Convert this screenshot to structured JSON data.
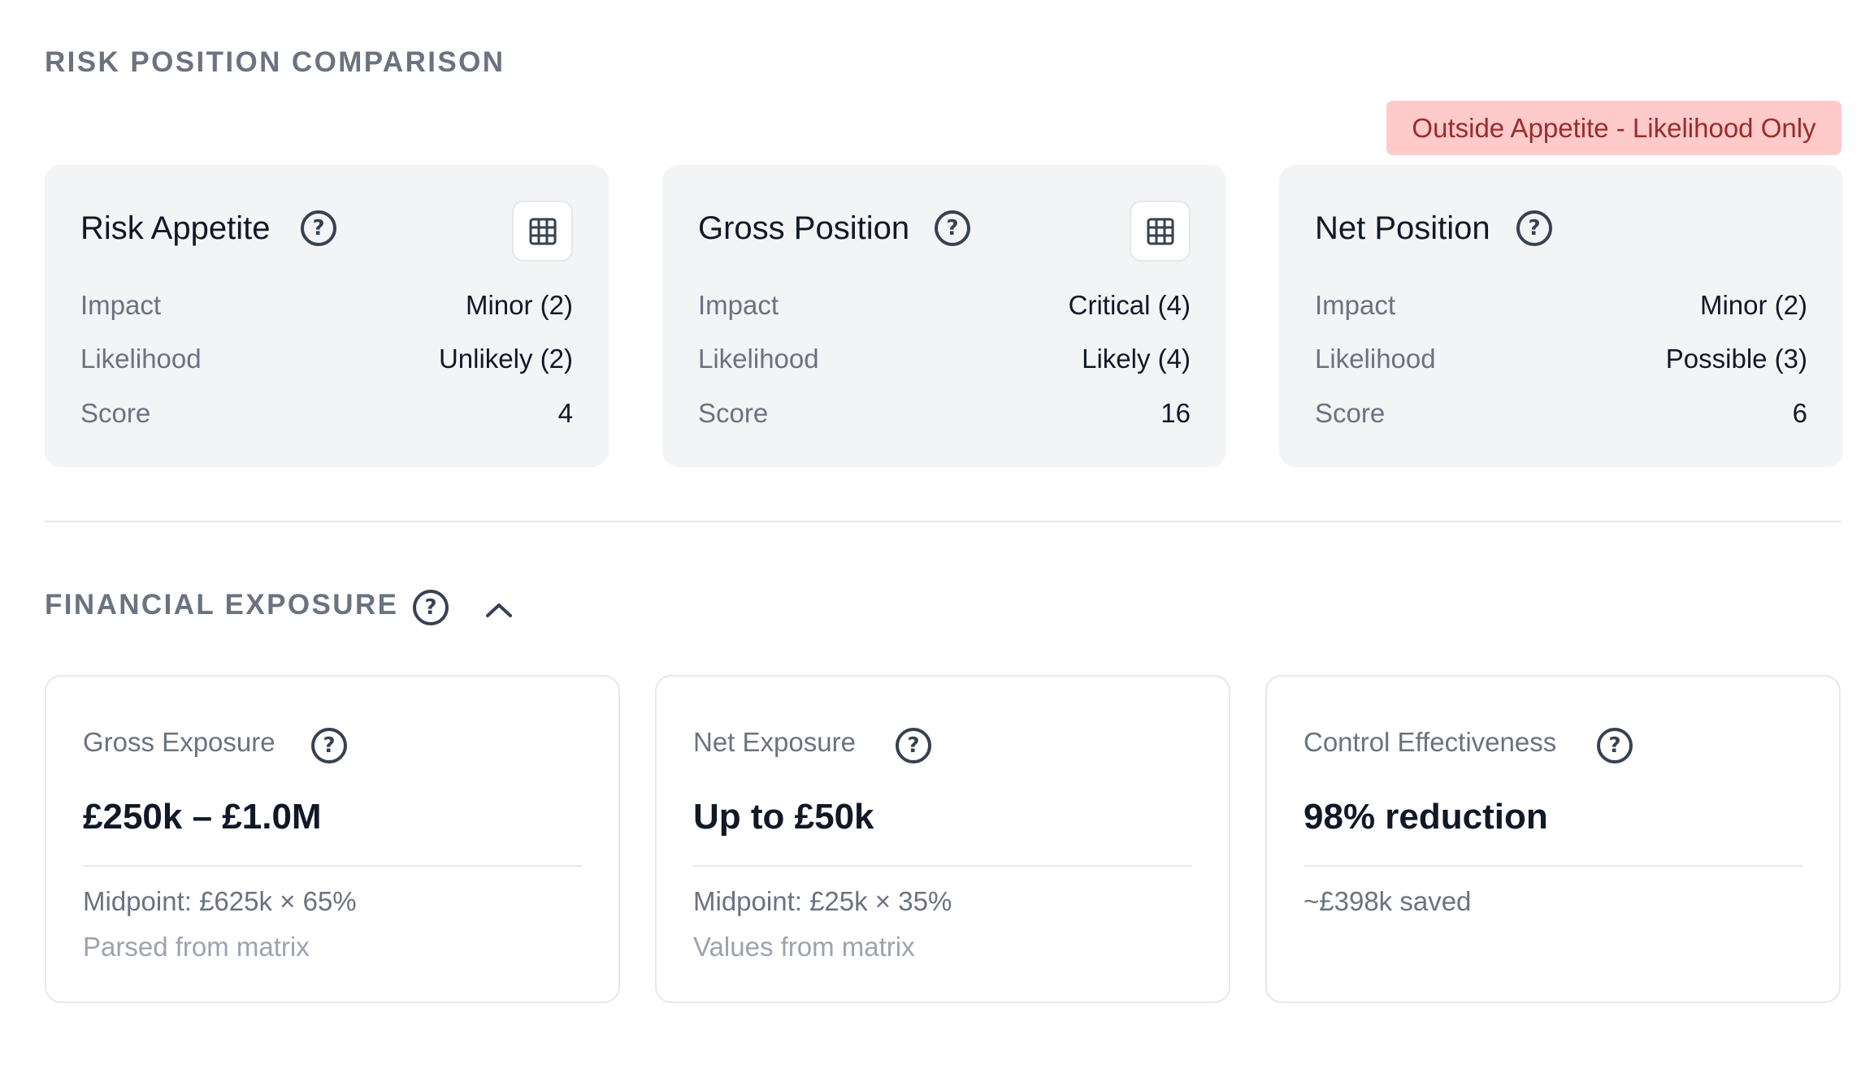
{
  "risk_position": {
    "heading": "RISK POSITION COMPARISON",
    "badge": "Outside Appetite - Likelihood Only",
    "cards": [
      {
        "title": "Risk Appetite",
        "impact_label": "Impact",
        "impact_value": "Minor (2)",
        "likelihood_label": "Likelihood",
        "likelihood_value": "Unlikely (2)",
        "score_label": "Score",
        "score_value": "4"
      },
      {
        "title": "Gross Position",
        "impact_label": "Impact",
        "impact_value": "Critical (4)",
        "likelihood_label": "Likelihood",
        "likelihood_value": "Likely (4)",
        "score_label": "Score",
        "score_value": "16"
      },
      {
        "title": "Net Position",
        "impact_label": "Impact",
        "impact_value": "Minor (2)",
        "likelihood_label": "Likelihood",
        "likelihood_value": "Possible (3)",
        "score_label": "Score",
        "score_value": "6"
      }
    ]
  },
  "financial_exposure": {
    "heading": "FINANCIAL EXPOSURE",
    "cards": [
      {
        "label": "Gross Exposure",
        "value": "£250k – £1.0M",
        "midpoint": "Midpoint: £625k × 65%",
        "source": "Parsed from matrix"
      },
      {
        "label": "Net Exposure",
        "value": "Up to £50k",
        "midpoint": "Midpoint: £25k × 35%",
        "source": "Values from matrix"
      },
      {
        "label": "Control Effectiveness",
        "value": "98% reduction",
        "midpoint": "~£398k saved"
      }
    ]
  },
  "icons": {
    "help": "question-circle-icon",
    "matrix": "grid-icon",
    "collapse": "chevron-up-icon"
  },
  "colors": {
    "badge_bg": "#fecaca",
    "badge_text": "#9b2c2c",
    "card_bg": "#f3f4f6",
    "muted_text": "#6b7280"
  }
}
